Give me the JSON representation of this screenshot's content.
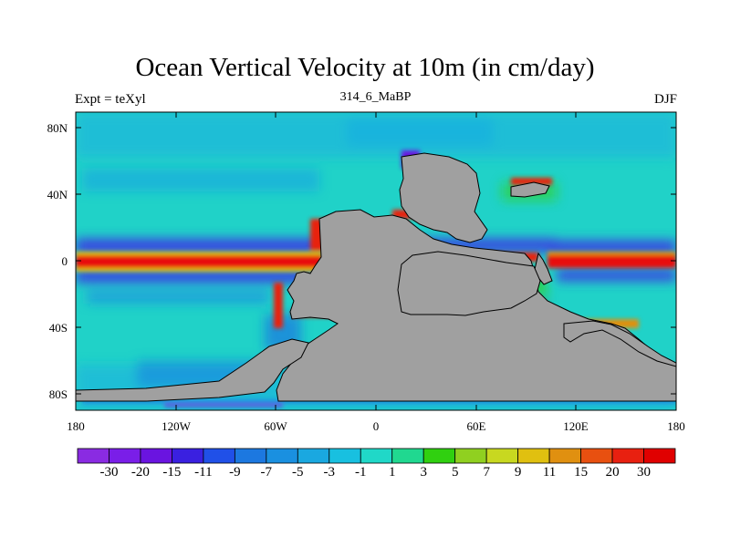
{
  "title": "Ocean Vertical Velocity at 10m (in cm/day)",
  "left_label": "Expt = teXyl",
  "center_label": "314_6_MaBP",
  "right_label": "DJF",
  "y_ticks": [
    "80N",
    "40N",
    "0",
    "40S",
    "80S"
  ],
  "x_ticks": [
    "180",
    "120W",
    "60W",
    "0",
    "60E",
    "120E",
    "180"
  ],
  "colorbar": {
    "labels": [
      "-30",
      "-20",
      "-15",
      "-11",
      "-9",
      "-7",
      "-5",
      "-3",
      "-1",
      "1",
      "3",
      "5",
      "7",
      "9",
      "11",
      "15",
      "20",
      "30"
    ],
    "colors": [
      "#8a2be2",
      "#7a1ee8",
      "#6a14e0",
      "#3a20e0",
      "#2050e8",
      "#1c78e0",
      "#1a90e0",
      "#1aa8e0",
      "#18c0e0",
      "#20d8c8",
      "#20d890",
      "#30d010",
      "#90d020",
      "#c8d820",
      "#e0c010",
      "#e09010",
      "#e85010",
      "#e82010",
      "#e00000"
    ]
  },
  "colors": {
    "land": "#a0a0a0",
    "ocean_base": "#20d2c8",
    "positive": "#e81010",
    "negative": "#6a14e0"
  }
}
